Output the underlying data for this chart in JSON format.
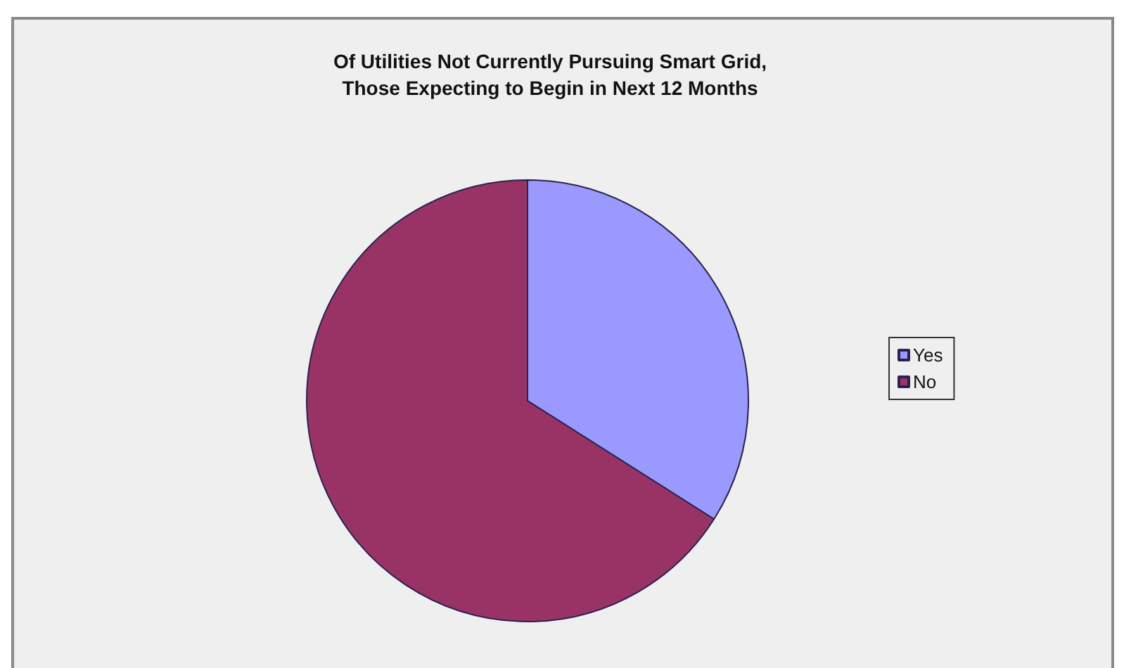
{
  "chart_data": {
    "type": "pie",
    "title": "Of Utilities Not Currently Pursuing Smart Grid,\nThose Expecting to Begin in Next 12 Months",
    "categories": [
      "Yes",
      "No"
    ],
    "values": [
      34,
      66
    ],
    "colors": [
      "#9999ff",
      "#993366"
    ],
    "legend": "right"
  }
}
